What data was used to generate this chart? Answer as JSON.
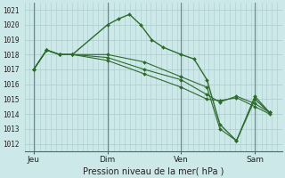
{
  "title": "Pression niveau de la mer( hPa )",
  "background_color": "#cce8e8",
  "grid_color": "#aacccc",
  "line_color": "#2d6b2d",
  "vline_color": "#6a8a8a",
  "ylim": [
    1011.5,
    1021.5
  ],
  "yticks": [
    1012,
    1013,
    1014,
    1015,
    1016,
    1017,
    1018,
    1019,
    1020,
    1021
  ],
  "xtick_labels": [
    "Jeu",
    "Dim",
    "Ven",
    "Sam"
  ],
  "xtick_positions": [
    0,
    40,
    80,
    120
  ],
  "xlim": [
    -5,
    135
  ],
  "lines": [
    {
      "x": [
        0,
        7,
        14,
        21,
        40,
        46,
        52,
        58,
        64,
        70,
        80,
        87,
        94,
        101,
        110,
        120,
        128
      ],
      "y": [
        1017.0,
        1018.3,
        1018.0,
        1018.0,
        1020.0,
        1020.4,
        1020.7,
        1020.0,
        1019.0,
        1018.5,
        1018.0,
        1017.7,
        1016.3,
        1013.3,
        1012.2,
        1015.0,
        1014.1
      ]
    },
    {
      "x": [
        0,
        7,
        14,
        21,
        40,
        60,
        80,
        94,
        101,
        110,
        120,
        128
      ],
      "y": [
        1017.0,
        1018.3,
        1018.0,
        1018.0,
        1018.0,
        1017.5,
        1016.5,
        1015.8,
        1013.0,
        1012.2,
        1015.2,
        1014.1
      ]
    },
    {
      "x": [
        0,
        7,
        14,
        21,
        40,
        60,
        80,
        94,
        101,
        110,
        120,
        128
      ],
      "y": [
        1017.0,
        1018.3,
        1018.0,
        1018.0,
        1017.8,
        1017.0,
        1016.3,
        1015.3,
        1014.8,
        1015.2,
        1014.7,
        1014.1
      ]
    },
    {
      "x": [
        0,
        7,
        14,
        21,
        40,
        60,
        80,
        94,
        101,
        110,
        120,
        128
      ],
      "y": [
        1017.0,
        1018.3,
        1018.0,
        1018.0,
        1017.6,
        1016.7,
        1015.8,
        1015.0,
        1014.9,
        1015.1,
        1014.5,
        1014.0
      ]
    }
  ]
}
